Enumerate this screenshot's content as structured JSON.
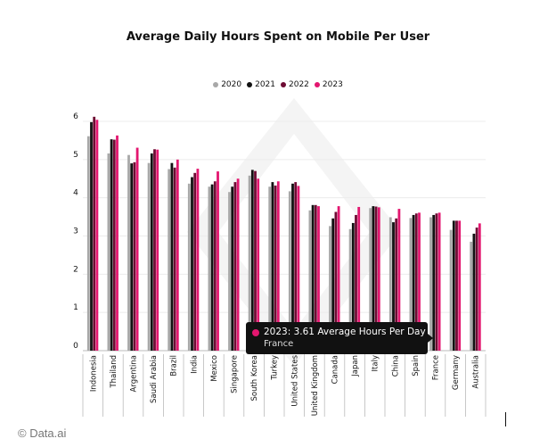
{
  "chart_data": {
    "type": "bar",
    "title": "Average Daily Hours Spent on Mobile Per User",
    "xlabel": "",
    "ylabel": "",
    "ylim": [
      0,
      6
    ],
    "yticks": [
      0,
      1,
      2,
      3,
      4,
      5,
      6
    ],
    "grid": true,
    "legend_position": "top",
    "categories": [
      "Indonesia",
      "Thailand",
      "Argentina",
      "Saudi Arabia",
      "Brazil",
      "India",
      "Mexico",
      "Singapore",
      "South Korea",
      "Turkey",
      "United States",
      "United Kingdom",
      "Canada",
      "Japan",
      "Italy",
      "China",
      "Spain",
      "France",
      "Germany",
      "Australia"
    ],
    "series": [
      {
        "name": "2020",
        "color": "#a8a8a8",
        "values": [
          5.61,
          5.16,
          5.12,
          4.91,
          4.75,
          4.37,
          4.29,
          4.15,
          4.58,
          4.29,
          4.17,
          3.67,
          3.26,
          3.18,
          3.73,
          3.49,
          3.47,
          3.49,
          3.16,
          2.85
        ]
      },
      {
        "name": "2021",
        "color": "#111111",
        "values": [
          5.98,
          5.53,
          4.9,
          5.16,
          4.91,
          4.54,
          4.35,
          4.29,
          4.73,
          4.41,
          4.37,
          3.81,
          3.46,
          3.34,
          3.78,
          3.36,
          3.55,
          3.55,
          3.4,
          3.06
        ]
      },
      {
        "name": "2022",
        "color": "#6e0b33",
        "values": [
          6.12,
          5.52,
          4.93,
          5.27,
          4.79,
          4.65,
          4.43,
          4.41,
          4.7,
          4.32,
          4.41,
          3.81,
          3.63,
          3.55,
          3.77,
          3.46,
          3.59,
          3.59,
          3.4,
          3.22
        ]
      },
      {
        "name": "2023",
        "color": "#e3166f",
        "values": [
          6.04,
          5.63,
          5.31,
          5.26,
          5.0,
          4.76,
          4.69,
          4.5,
          4.5,
          4.43,
          4.31,
          3.78,
          3.78,
          3.76,
          3.75,
          3.71,
          3.61,
          3.61,
          3.4,
          3.33
        ]
      }
    ],
    "tooltip": {
      "line1": "2023: 3.61 Average Hours Per Day",
      "line2": "France",
      "color": "#e3166f"
    }
  },
  "credit": "© Data.ai"
}
